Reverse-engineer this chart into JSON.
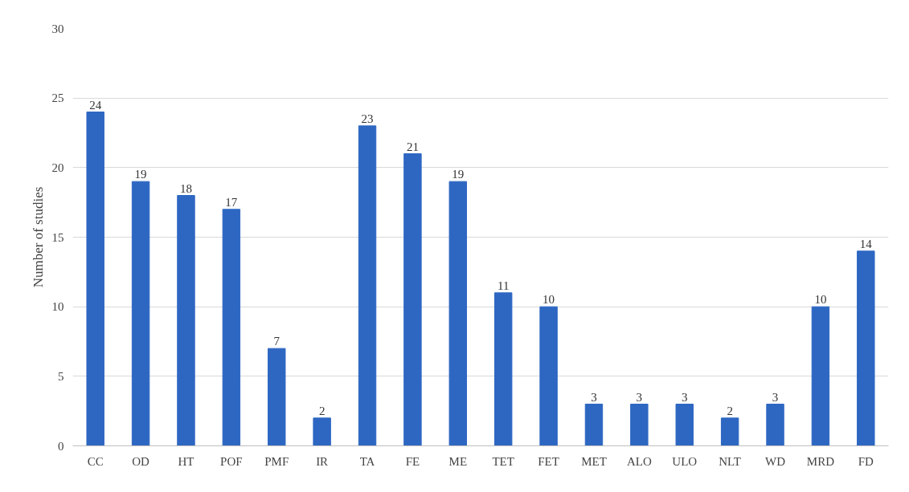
{
  "chart_data": {
    "type": "bar",
    "ylabel": "Number of studies",
    "categories": [
      "CC",
      "OD",
      "HT",
      "POF",
      "PMF",
      "IR",
      "TA",
      "FE",
      "ME",
      "TET",
      "FET",
      "MET",
      "ALO",
      "ULO",
      "NLT",
      "WD",
      "MRD",
      "FD"
    ],
    "values": [
      24,
      19,
      18,
      17,
      7,
      2,
      23,
      21,
      19,
      11,
      10,
      3,
      3,
      3,
      2,
      3,
      10,
      14
    ],
    "color": "#2e67c2",
    "ylim": [
      0,
      30
    ],
    "yticks": [
      0,
      5,
      10,
      15,
      20,
      25,
      30
    ],
    "grid": "y",
    "data_labels": true
  }
}
